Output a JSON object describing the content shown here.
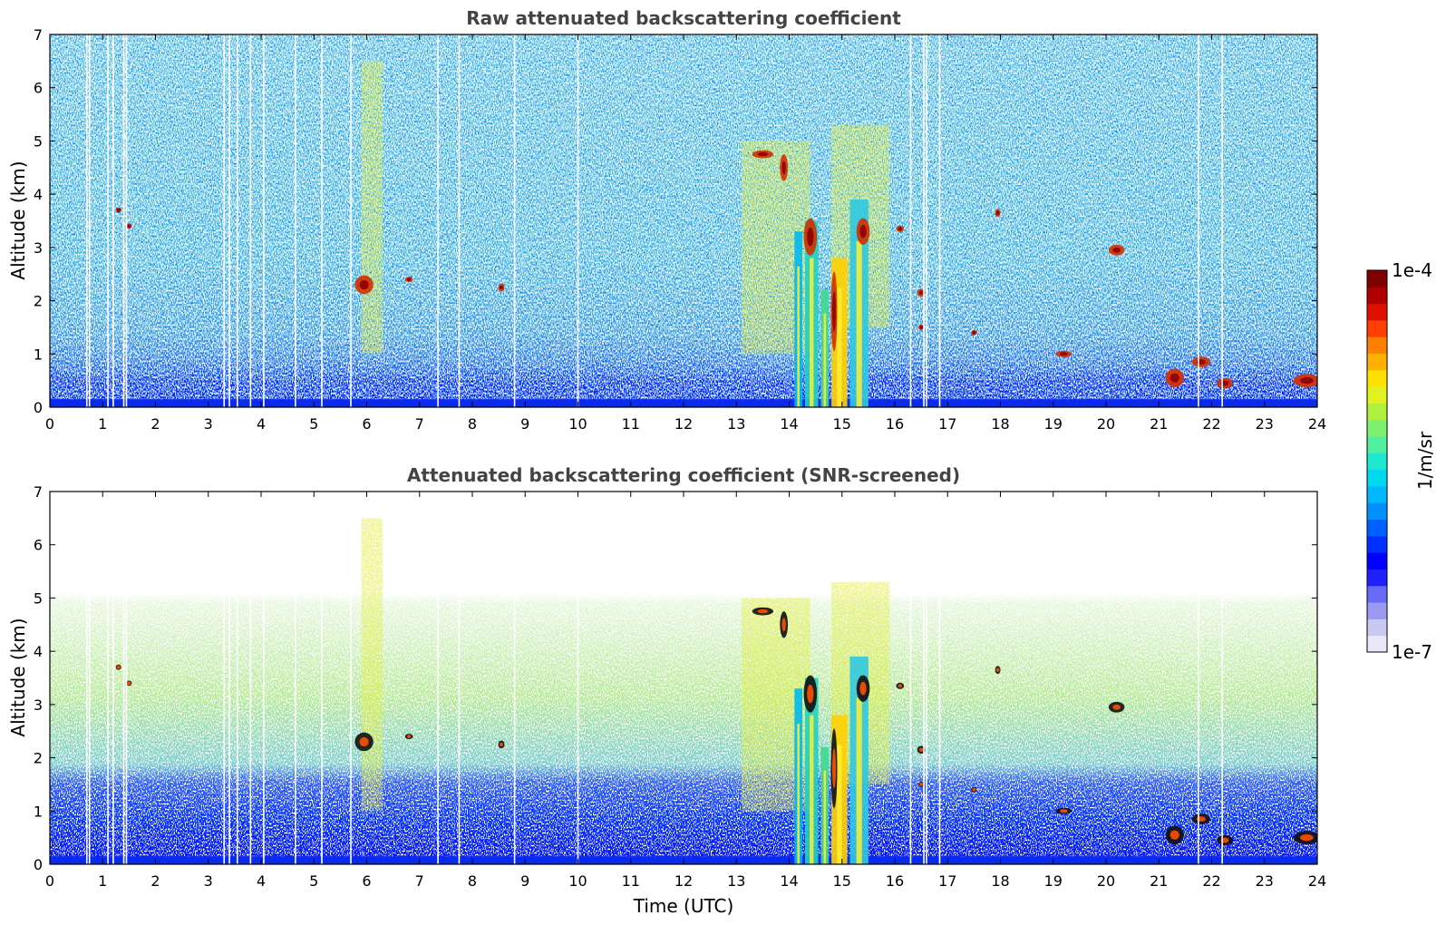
{
  "chart_data": [
    {
      "type": "heatmap",
      "title": "Raw attenuated backscattering coefficient",
      "xlabel": "",
      "ylabel": "Altitude (km)",
      "xlim": [
        0,
        24
      ],
      "ylim": [
        0,
        7
      ],
      "x_ticks": [
        "0",
        "1",
        "2",
        "3",
        "4",
        "5",
        "6",
        "7",
        "8",
        "9",
        "10",
        "11",
        "12",
        "13",
        "14",
        "15",
        "16",
        "17",
        "18",
        "19",
        "20",
        "21",
        "22",
        "23",
        "24"
      ],
      "y_ticks": [
        "0",
        "1",
        "2",
        "3",
        "4",
        "5",
        "6",
        "7"
      ],
      "color_scale": "log",
      "value_range": [
        1e-07,
        0.0001
      ],
      "features": {
        "boundary_layer_top_km": [
          [
            0,
            0.55
          ],
          [
            1,
            0.6
          ],
          [
            2,
            0.55
          ],
          [
            3,
            0.55
          ],
          [
            4,
            0.5
          ],
          [
            5,
            0.5
          ],
          [
            6,
            0.55
          ],
          [
            7,
            0.55
          ],
          [
            8,
            0.55
          ],
          [
            9,
            0.5
          ],
          [
            10,
            0.5
          ],
          [
            11,
            0.5
          ],
          [
            12,
            0.5
          ],
          [
            13,
            0.55
          ],
          [
            14,
            0.6
          ],
          [
            15,
            0.65
          ],
          [
            16,
            0.6
          ],
          [
            17,
            0.55
          ],
          [
            18,
            0.5
          ],
          [
            19,
            0.55
          ],
          [
            20,
            0.6
          ],
          [
            21,
            0.6
          ],
          [
            22,
            0.6
          ],
          [
            23,
            0.45
          ],
          [
            24,
            0.45
          ]
        ],
        "noise_region_top_km": 7,
        "missing_profiles_utc": [
          0.7,
          0.75,
          1.1,
          1.2,
          1.4,
          1.45,
          3.3,
          3.4,
          3.55,
          3.8,
          4.05,
          4.65,
          5.15,
          5.7,
          7.35,
          7.75,
          8.8,
          10.0,
          16.3,
          16.55,
          16.6,
          16.85,
          21.75,
          22.2
        ],
        "precipitation_columns_utc": [
          {
            "start": 14.1,
            "end": 14.25,
            "top_km": 3.3
          },
          {
            "start": 14.3,
            "end": 14.55,
            "top_km": 3.5
          },
          {
            "start": 14.6,
            "end": 14.75,
            "top_km": 2.2
          },
          {
            "start": 14.8,
            "end": 15.1,
            "top_km": 2.8
          },
          {
            "start": 15.15,
            "end": 15.5,
            "top_km": 3.9
          }
        ],
        "aerosol_haze_bands": [
          {
            "start": 5.9,
            "end": 6.3,
            "bottom_km": 1.0,
            "top_km": 6.5
          },
          {
            "start": 13.1,
            "end": 14.4,
            "bottom_km": 1.0,
            "top_km": 5.0
          },
          {
            "start": 14.8,
            "end": 15.9,
            "bottom_km": 1.5,
            "top_km": 5.3
          }
        ],
        "cloud_patches": [
          {
            "t": 1.3,
            "z": 3.7,
            "w": 0.06,
            "h": 0.1
          },
          {
            "t": 1.5,
            "z": 3.4,
            "w": 0.05,
            "h": 0.1
          },
          {
            "t": 5.95,
            "z": 2.3,
            "w": 0.35,
            "h": 0.35
          },
          {
            "t": 6.8,
            "z": 2.4,
            "w": 0.15,
            "h": 0.1
          },
          {
            "t": 8.55,
            "z": 2.25,
            "w": 0.12,
            "h": 0.15
          },
          {
            "t": 13.5,
            "z": 4.75,
            "w": 0.4,
            "h": 0.15
          },
          {
            "t": 13.9,
            "z": 4.5,
            "w": 0.15,
            "h": 0.5
          },
          {
            "t": 14.4,
            "z": 3.2,
            "w": 0.25,
            "h": 0.7
          },
          {
            "t": 14.85,
            "z": 1.8,
            "w": 0.12,
            "h": 1.5
          },
          {
            "t": 15.4,
            "z": 3.3,
            "w": 0.25,
            "h": 0.5
          },
          {
            "t": 16.1,
            "z": 3.35,
            "w": 0.15,
            "h": 0.12
          },
          {
            "t": 16.5,
            "z": 2.15,
            "w": 0.15,
            "h": 0.15
          },
          {
            "t": 16.5,
            "z": 1.5,
            "w": 0.1,
            "h": 0.1
          },
          {
            "t": 17.5,
            "z": 1.4,
            "w": 0.08,
            "h": 0.1
          },
          {
            "t": 17.95,
            "z": 3.65,
            "w": 0.1,
            "h": 0.15
          },
          {
            "t": 19.2,
            "z": 1.0,
            "w": 0.3,
            "h": 0.12
          },
          {
            "t": 20.2,
            "z": 2.95,
            "w": 0.3,
            "h": 0.2
          },
          {
            "t": 21.3,
            "z": 0.55,
            "w": 0.35,
            "h": 0.35
          },
          {
            "t": 21.8,
            "z": 0.85,
            "w": 0.35,
            "h": 0.2
          },
          {
            "t": 22.25,
            "z": 0.45,
            "w": 0.3,
            "h": 0.2
          },
          {
            "t": 23.8,
            "z": 0.5,
            "w": 0.5,
            "h": 0.25
          }
        ]
      }
    },
    {
      "type": "heatmap",
      "title": "Attenuated backscattering coefficient (SNR-screened)",
      "xlabel": "Time (UTC)",
      "ylabel": "Altitude (km)",
      "xlim": [
        0,
        24
      ],
      "ylim": [
        0,
        7
      ],
      "x_ticks": [
        "0",
        "1",
        "2",
        "3",
        "4",
        "5",
        "6",
        "7",
        "8",
        "9",
        "10",
        "11",
        "12",
        "13",
        "14",
        "15",
        "16",
        "17",
        "18",
        "19",
        "20",
        "21",
        "22",
        "23",
        "24"
      ],
      "y_ticks": [
        "0",
        "1",
        "2",
        "3",
        "4",
        "5",
        "6",
        "7"
      ],
      "color_scale": "log",
      "value_range": [
        1e-07,
        0.0001
      ],
      "features": {
        "dense_layer_top_km": 1.8,
        "sparse_signal_top_km": 5.0,
        "screened_out": "noise above signal",
        "same_events_as_raw": true
      }
    }
  ],
  "colorbar": {
    "label": "1/m/sr",
    "max_label": "1e-4",
    "min_label": "1e-7",
    "colors": [
      "#e8e8f8",
      "#c8c8f0",
      "#9a9af0",
      "#6a6af8",
      "#2020ff",
      "#0000ff",
      "#0030ff",
      "#0060ff",
      "#0090ff",
      "#00b8ff",
      "#00d8f0",
      "#20e8d0",
      "#50f0a0",
      "#80f070",
      "#b0f040",
      "#e0f020",
      "#ffe000",
      "#ffb000",
      "#ff8000",
      "#ff4000",
      "#e01000",
      "#b00000",
      "#800000"
    ]
  }
}
